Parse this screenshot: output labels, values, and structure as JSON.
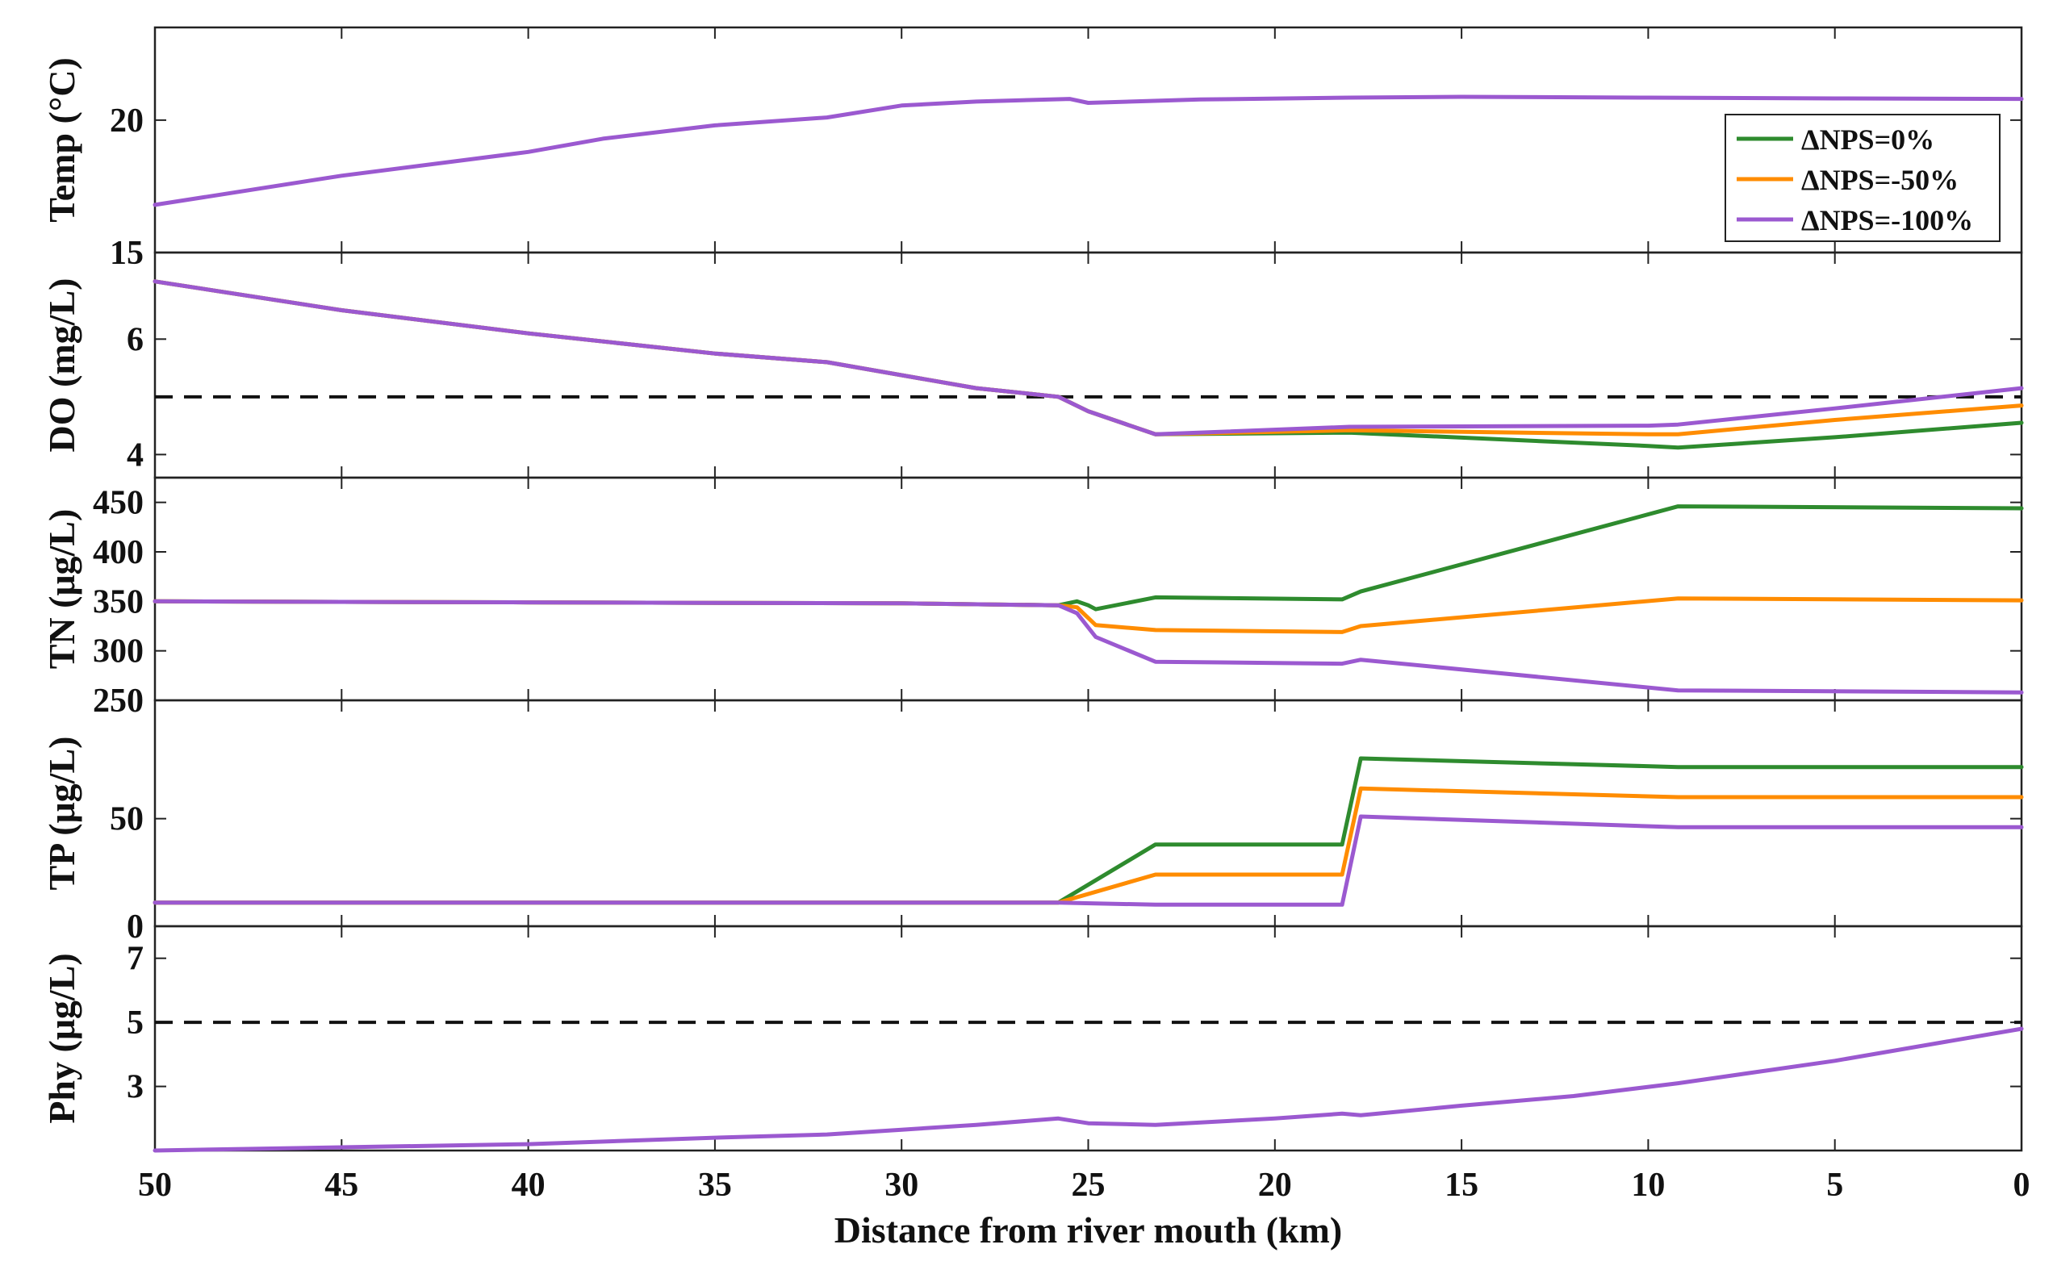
{
  "chart_data": {
    "type": "line",
    "xlabel": "Distance from river mouth (km)",
    "x_ticks": [
      50,
      45,
      40,
      35,
      30,
      25,
      20,
      15,
      10,
      5,
      0
    ],
    "x_tick_labels": [
      "50",
      "45",
      "40",
      "35",
      "30",
      "25",
      "20",
      "15",
      "10",
      "5",
      "0"
    ],
    "xlim": [
      50,
      0
    ],
    "legend": {
      "position": "top-right",
      "entries": [
        {
          "label": "ΔNPS=0%",
          "color": "#2e8b2e"
        },
        {
          "label": "ΔNPS=-50%",
          "color": "#ff8c00"
        },
        {
          "label": "ΔNPS=-100%",
          "color": "#9b59d0"
        }
      ]
    },
    "panels": [
      {
        "id": "temp",
        "ylabel": "Temp (°C)",
        "ylim": [
          15,
          23.5
        ],
        "y_ticks": [
          15,
          20
        ],
        "y_tick_labels": [
          "15",
          "20"
        ],
        "series": [
          {
            "name": "ΔNPS=-100%",
            "color": "#9b59d0",
            "x": [
              50,
              45,
              40,
              38,
              35,
              32,
              30,
              28,
              25.5,
              25,
              22,
              18,
              15,
              10,
              5,
              0
            ],
            "y": [
              16.8,
              17.9,
              18.8,
              19.3,
              19.8,
              20.1,
              20.55,
              20.7,
              20.8,
              20.65,
              20.78,
              20.85,
              20.88,
              20.85,
              20.82,
              20.8
            ]
          }
        ]
      },
      {
        "id": "do",
        "ylabel": "DO (mg/L)",
        "ylim": [
          3.6,
          7.5
        ],
        "y_ticks": [
          4,
          6
        ],
        "y_tick_labels": [
          "4",
          "6"
        ],
        "threshold": 5,
        "series": [
          {
            "name": "ΔNPS=0%",
            "color": "#2e8b2e",
            "x": [
              50,
              45,
              40,
              35,
              32,
              28,
              25.8,
              25,
              23.2,
              18,
              10,
              9.2,
              5,
              0
            ],
            "y": [
              7.0,
              6.5,
              6.1,
              5.75,
              5.6,
              5.15,
              5.0,
              4.75,
              4.35,
              4.38,
              4.15,
              4.12,
              4.3,
              4.55
            ]
          },
          {
            "name": "ΔNPS=-50%",
            "color": "#ff8c00",
            "x": [
              50,
              45,
              40,
              35,
              32,
              28,
              25.8,
              25,
              23.2,
              18,
              10,
              9.2,
              5,
              0
            ],
            "y": [
              7.0,
              6.5,
              6.1,
              5.75,
              5.6,
              5.15,
              5.0,
              4.75,
              4.35,
              4.42,
              4.35,
              4.35,
              4.6,
              4.85
            ]
          },
          {
            "name": "ΔNPS=-100%",
            "color": "#9b59d0",
            "x": [
              50,
              45,
              40,
              35,
              32,
              28,
              25.8,
              25,
              23.2,
              18,
              10,
              9.2,
              5,
              0
            ],
            "y": [
              7.0,
              6.5,
              6.1,
              5.75,
              5.6,
              5.15,
              5.0,
              4.75,
              4.35,
              4.48,
              4.5,
              4.52,
              4.8,
              5.15
            ]
          }
        ]
      },
      {
        "id": "tn",
        "ylabel": "TN (μg/L)",
        "ylim": [
          250,
          475
        ],
        "y_ticks": [
          250,
          300,
          350,
          400,
          450
        ],
        "y_tick_labels": [
          "250",
          "300",
          "350",
          "400",
          "450"
        ],
        "series": [
          {
            "name": "ΔNPS=0%",
            "color": "#2e8b2e",
            "x": [
              50,
              40,
              30,
              25.8,
              25.3,
              25,
              24.8,
              23.2,
              18.2,
              17.7,
              9.2,
              0
            ],
            "y": [
              350,
              349,
              348,
              346,
              350,
              346,
              342,
              354,
              352,
              360,
              446,
              444
            ]
          },
          {
            "name": "ΔNPS=-50%",
            "color": "#ff8c00",
            "x": [
              50,
              40,
              30,
              25.8,
              25.3,
              24.8,
              23.2,
              18.2,
              17.7,
              9.2,
              0
            ],
            "y": [
              350,
              349,
              348,
              346,
              344,
              326,
              321,
              319,
              325,
              353,
              351
            ]
          },
          {
            "name": "ΔNPS=-100%",
            "color": "#9b59d0",
            "x": [
              50,
              40,
              30,
              25.8,
              25.3,
              24.8,
              23.2,
              18.2,
              17.7,
              9.2,
              0
            ],
            "y": [
              350,
              349,
              348,
              346,
              338,
              314,
              289,
              287,
              291,
              260,
              258
            ]
          }
        ]
      },
      {
        "id": "tp",
        "ylabel": "TP (μg/L)",
        "ylim": [
          0,
          105
        ],
        "y_ticks": [
          0,
          50
        ],
        "y_tick_labels": [
          "0",
          "50"
        ],
        "series": [
          {
            "name": "ΔNPS=0%",
            "color": "#2e8b2e",
            "x": [
              50,
              40,
              30,
              25.8,
              23.2,
              18.2,
              17.7,
              9.2,
              0
            ],
            "y": [
              11,
              11,
              11,
              11,
              38,
              38,
              78,
              74,
              74
            ]
          },
          {
            "name": "ΔNPS=-50%",
            "color": "#ff8c00",
            "x": [
              50,
              40,
              30,
              25.8,
              23.2,
              18.2,
              17.7,
              9.2,
              0
            ],
            "y": [
              11,
              11,
              11,
              11,
              24,
              24,
              64,
              60,
              60
            ]
          },
          {
            "name": "ΔNPS=-100%",
            "color": "#9b59d0",
            "x": [
              50,
              40,
              30,
              25.8,
              23.2,
              18.2,
              17.7,
              9.2,
              0
            ],
            "y": [
              11,
              11,
              11,
              11,
              10,
              10,
              51,
              46,
              46
            ]
          }
        ]
      },
      {
        "id": "phy",
        "ylabel": "Phy (μg/L)",
        "ylim": [
          1.0,
          8.0
        ],
        "y_ticks": [
          3,
          5,
          7
        ],
        "y_tick_labels": [
          "3",
          "5",
          "7"
        ],
        "threshold": 5,
        "series": [
          {
            "name": "ΔNPS=-100%",
            "color": "#9b59d0",
            "x": [
              50,
              45,
              40,
              35,
              32,
              30,
              28,
              25.8,
              25,
              23.2,
              20,
              18.2,
              17.7,
              15,
              12,
              9.2,
              5,
              0
            ],
            "y": [
              1.0,
              1.1,
              1.2,
              1.4,
              1.5,
              1.65,
              1.8,
              2.0,
              1.85,
              1.8,
              2.0,
              2.15,
              2.1,
              2.4,
              2.7,
              3.1,
              3.8,
              4.8
            ]
          }
        ]
      }
    ]
  }
}
